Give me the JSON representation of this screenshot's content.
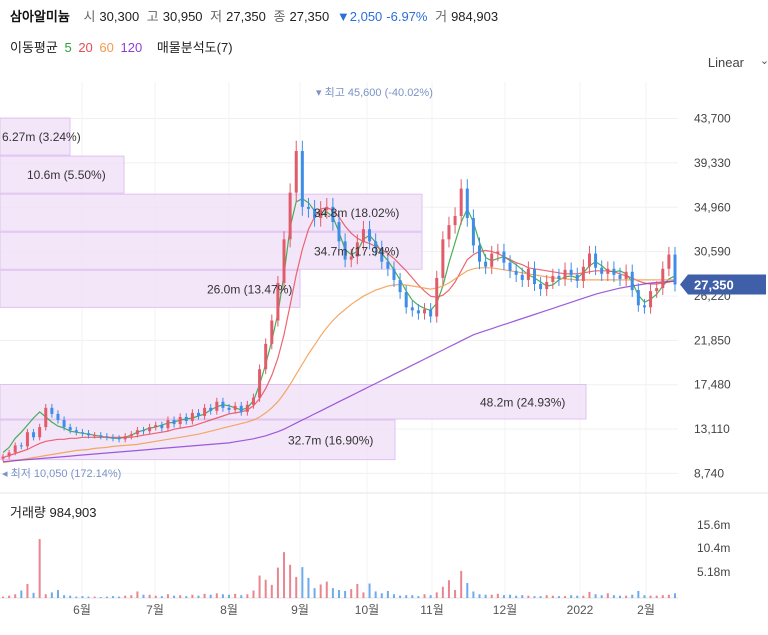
{
  "header": {
    "name": "삼아알미늄",
    "open_label": "시",
    "open": "30,300",
    "high_label": "고",
    "high": "30,950",
    "low_label": "저",
    "low": "27,350",
    "close_label": "종",
    "close": "27,350",
    "change": "▼2,050",
    "change_pct": "-6.97%",
    "volume_label": "거",
    "volume": "984,903"
  },
  "ma": {
    "label": "이동평균",
    "p5": "5",
    "p20": "20",
    "p60": "60",
    "p120": "120",
    "p5_color": "#27a33a",
    "p20_color": "#e94b57",
    "p60_color": "#f39a4a",
    "p120_color": "#8b3fd6",
    "vp_label": "매물분석도(7)"
  },
  "scale_mode": "Linear",
  "volume_panel": {
    "label": "거래량",
    "value": "984,903",
    "ticks": [
      "15.6m",
      "10.4m",
      "5.18m"
    ]
  },
  "colors": {
    "up": "#e15c6b",
    "down": "#3e8ee8",
    "current": "#3f5fa8",
    "vp": "#f1e2f8",
    "vp_border": "#dcb9ee"
  },
  "chart_data": {
    "type": "candlestick",
    "y_axis_ticks": [
      "43,700",
      "39,330",
      "34,960",
      "30,590",
      "26,220",
      "21,850",
      "17,480",
      "13,110",
      "8,740"
    ],
    "y_tick_values": [
      43700,
      39330,
      34960,
      30590,
      26220,
      21850,
      17480,
      13110,
      8740
    ],
    "ylim": [
      7500,
      47300
    ],
    "x_axis_labels": [
      "6월",
      "7월",
      "8월",
      "9월",
      "10월",
      "11월",
      "12월",
      "2022",
      "2월"
    ],
    "current_price": "27,350",
    "annotations": {
      "high": "최고 45,600 (-40.02%)",
      "low": "최저 10,050 (172.14%)"
    },
    "volume_profile": [
      {
        "label": "6.27m (3.24%)",
        "price_low": 40000,
        "price_high": 43750
      },
      {
        "label": "10.6m (5.50%)",
        "price_low": 36250,
        "price_high": 40000
      },
      {
        "label": "34.8m (18.02%)",
        "price_low": 32500,
        "price_high": 36250
      },
      {
        "label": "34.7m (17.94%)",
        "price_low": 28750,
        "price_high": 32500
      },
      {
        "label": "26.0m (13.47%)",
        "price_low": 25000,
        "price_high": 28750
      },
      {
        "label": "48.2m (24.93%)",
        "price_low": 14000,
        "price_high": 17500
      },
      {
        "label": "32.7m (16.90%)",
        "price_low": 10000,
        "price_high": 14000
      }
    ],
    "series": [
      {
        "name": "5",
        "values": [
          10800,
          11300,
          12200,
          12800,
          13500,
          14200,
          14800,
          14300,
          13800,
          13400,
          13200,
          12900,
          12800,
          12700,
          12600,
          12500,
          12400,
          12300,
          12200,
          12200,
          12300,
          12500,
          12800,
          13000,
          13200,
          13300,
          13500,
          13700,
          13800,
          14000,
          14100,
          14200,
          14400,
          14600,
          15000,
          15300,
          15500,
          15400,
          15200,
          15000,
          15200,
          15900,
          17500,
          19500,
          21800,
          24500,
          28300,
          33000,
          35500,
          35800,
          35400,
          34600,
          34100,
          34500,
          34000,
          32500,
          30800,
          30300,
          30600,
          31800,
          32200,
          31500,
          30400,
          29700,
          28800,
          27800,
          26700,
          25800,
          25300,
          25000,
          24800,
          25500,
          27200,
          29500,
          31500,
          33500,
          34800,
          33500,
          31500,
          30000,
          29700,
          29900,
          30100,
          29700,
          29300,
          28800,
          28300,
          28000,
          27600,
          27200,
          27300,
          27800,
          28100,
          28200,
          28000,
          28500,
          29200,
          29600,
          29200,
          28700,
          28600,
          28700,
          28400,
          27600,
          26300,
          25600,
          25900,
          26400,
          27200,
          27900,
          28200
        ]
      },
      {
        "name": "20",
        "values": [
          10300,
          10500,
          10700,
          10900,
          11100,
          11400,
          11700,
          11900,
          12000,
          12100,
          12100,
          12200,
          12200,
          12300,
          12300,
          12300,
          12300,
          12300,
          12300,
          12300,
          12300,
          12300,
          12400,
          12500,
          12600,
          12700,
          12800,
          12900,
          13100,
          13200,
          13300,
          13400,
          13600,
          13800,
          14000,
          14200,
          14400,
          14600,
          14700,
          14800,
          15000,
          15400,
          16100,
          17100,
          18400,
          20100,
          22400,
          25300,
          28300,
          30800,
          32800,
          34000,
          34800,
          34900,
          34700,
          34000,
          33100,
          32400,
          31900,
          31600,
          31400,
          31100,
          30800,
          30400,
          29900,
          29300,
          28700,
          28000,
          27300,
          26700,
          26200,
          26100,
          26300,
          26800,
          27600,
          28700,
          29800,
          30300,
          30600,
          30700,
          30600,
          30400,
          30100,
          29800,
          29500,
          29300,
          29000,
          28900,
          28800,
          28700,
          28600,
          28500,
          28400,
          28400,
          28400,
          28500,
          28600,
          28700,
          28700,
          28700,
          28600,
          28400,
          28200,
          28000,
          27700,
          27500,
          27400,
          27400,
          27500,
          27600,
          27700
        ]
      },
      {
        "name": "60",
        "values": [
          9800,
          9900,
          10000,
          10100,
          10200,
          10300,
          10400,
          10500,
          10600,
          10700,
          10800,
          10900,
          11000,
          11050,
          11100,
          11200,
          11250,
          11300,
          11400,
          11450,
          11500,
          11550,
          11600,
          11700,
          11800,
          11900,
          12000,
          12100,
          12200,
          12300,
          12400,
          12500,
          12600,
          12750,
          12900,
          13050,
          13200,
          13350,
          13500,
          13650,
          13800,
          14000,
          14300,
          14700,
          15200,
          15800,
          16600,
          17500,
          18500,
          19500,
          20500,
          21400,
          22300,
          23100,
          23800,
          24400,
          24900,
          25400,
          25800,
          26200,
          26500,
          26800,
          27000,
          27200,
          27300,
          27350,
          27300,
          27200,
          27100,
          27000,
          26900,
          27000,
          27200,
          27500,
          27900,
          28300,
          28700,
          28900,
          29000,
          29000,
          29000,
          28900,
          28800,
          28700,
          28600,
          28500,
          28400,
          28300,
          28200,
          28100,
          28000,
          27950,
          27900,
          27850,
          27800,
          27800,
          27800,
          27800,
          27800,
          27800,
          27800,
          27800,
          27800,
          27800,
          27800,
          27800,
          27800,
          27800,
          27800,
          27800,
          27800
        ]
      },
      {
        "name": "120",
        "values": [
          9900,
          9950,
          10000,
          10050,
          10100,
          10150,
          10200,
          10250,
          10300,
          10350,
          10400,
          10450,
          10500,
          10550,
          10600,
          10650,
          10700,
          10750,
          10800,
          10850,
          10900,
          10950,
          11000,
          11050,
          11100,
          11150,
          11200,
          11250,
          11300,
          11350,
          11400,
          11450,
          11500,
          11550,
          11600,
          11650,
          11700,
          11750,
          11850,
          11950,
          12050,
          12150,
          12300,
          12450,
          12650,
          12850,
          13100,
          13400,
          13700,
          14000,
          14300,
          14600,
          14900,
          15200,
          15500,
          15800,
          16100,
          16400,
          16700,
          17000,
          17300,
          17600,
          17900,
          18200,
          18500,
          18800,
          19100,
          19400,
          19700,
          20000,
          20300,
          20600,
          20900,
          21200,
          21500,
          21800,
          22100,
          22400,
          22600,
          22800,
          23000,
          23200,
          23400,
          23600,
          23800,
          24000,
          24200,
          24400,
          24600,
          24800,
          25000,
          25200,
          25400,
          25600,
          25800,
          26000,
          26200,
          26400,
          26550,
          26700,
          26850,
          27000,
          27100,
          27200,
          27300,
          27400,
          27500,
          27550,
          27600,
          27650,
          27700
        ]
      }
    ],
    "candles": [
      10400,
      10800,
      11500,
      11400,
      12800,
      12300,
      13300,
      15200,
      14600,
      14000,
      13300,
      13000,
      12800,
      12700,
      12500,
      12500,
      12400,
      12300,
      12200,
      12100,
      12400,
      12600,
      13000,
      12900,
      13300,
      13500,
      13200,
      14000,
      13600,
      14300,
      13900,
      14700,
      14400,
      15200,
      14900,
      15800,
      15200,
      15000,
      15400,
      14800,
      15500,
      16200,
      19000,
      21500,
      23800,
      27500,
      31800,
      36400,
      40500,
      35000,
      34800,
      33900,
      34700,
      35000,
      33500,
      31600,
      29800,
      30100,
      31500,
      32800,
      31600,
      30900,
      29600,
      28900,
      27800,
      26600,
      25100,
      24800,
      24500,
      24900,
      24200,
      28000,
      31800,
      33200,
      34100,
      36800,
      33900,
      31200,
      29600,
      29100,
      30400,
      30600,
      29500,
      28700,
      28300,
      27800,
      28900,
      27400,
      26900,
      27600,
      28200,
      27900,
      28800,
      28300,
      27700,
      29100,
      30400,
      29000,
      28400,
      28900,
      28300,
      27900,
      28600,
      26800,
      25300,
      25100,
      26700,
      27000,
      28900,
      30300,
      27350
    ],
    "volume": [
      0.3,
      0.5,
      0.8,
      1.6,
      3.0,
      1.1,
      12.6,
      0.8,
      1.2,
      1.7,
      0.6,
      0.5,
      0.3,
      0.4,
      0.3,
      0.3,
      0.2,
      0.3,
      0.4,
      0.3,
      0.5,
      0.6,
      1.4,
      0.7,
      0.7,
      0.5,
      0.4,
      0.8,
      0.5,
      0.6,
      0.4,
      0.7,
      0.5,
      0.9,
      0.7,
      1.0,
      0.8,
      0.7,
      0.9,
      0.6,
      0.8,
      1.6,
      4.8,
      3.9,
      2.8,
      6.5,
      9.8,
      7.1,
      4.5,
      6.6,
      4.3,
      2.1,
      2.9,
      3.5,
      2.1,
      1.7,
      1.5,
      1.9,
      3.0,
      1.2,
      3.1,
      1.4,
      1.0,
      1.5,
      0.8,
      0.5,
      0.6,
      0.6,
      0.4,
      0.8,
      0.6,
      1.2,
      2.4,
      3.8,
      1.7,
      5.8,
      3.2,
      1.4,
      0.8,
      0.7,
      0.7,
      0.9,
      0.6,
      0.7,
      0.5,
      0.6,
      0.5,
      0.4,
      0.4,
      0.6,
      0.5,
      0.4,
      0.4,
      0.6,
      0.5,
      0.5,
      1.3,
      0.8,
      0.6,
      1.0,
      0.6,
      0.5,
      0.5,
      0.7,
      1.5,
      0.6,
      0.5,
      0.5,
      0.6,
      0.7,
      1.0
    ]
  }
}
